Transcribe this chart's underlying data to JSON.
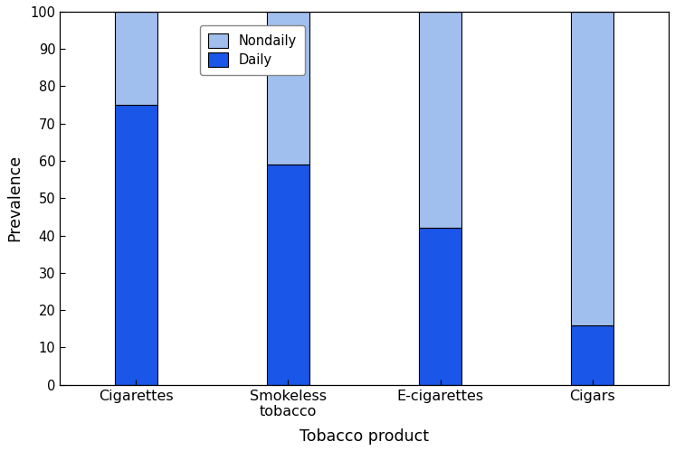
{
  "categories": [
    "Cigarettes",
    "Smokeless\ntobacco",
    "E-cigarettes",
    "Cigars"
  ],
  "daily_values": [
    75,
    59,
    42,
    16
  ],
  "nondaily_values": [
    25,
    41,
    58,
    84
  ],
  "daily_color": "#1a56e8",
  "nondaily_color": "#a0bfee",
  "bar_edge_color": "black",
  "bar_width": 0.28,
  "ylim": [
    0,
    100
  ],
  "yticks": [
    0,
    10,
    20,
    30,
    40,
    50,
    60,
    70,
    80,
    90,
    100
  ],
  "ylabel": "Prevalence",
  "xlabel": "Tobacco product",
  "legend_nondaily": "Nondaily",
  "legend_daily": "Daily",
  "figsize": [
    7.46,
    4.99
  ],
  "dpi": 100
}
